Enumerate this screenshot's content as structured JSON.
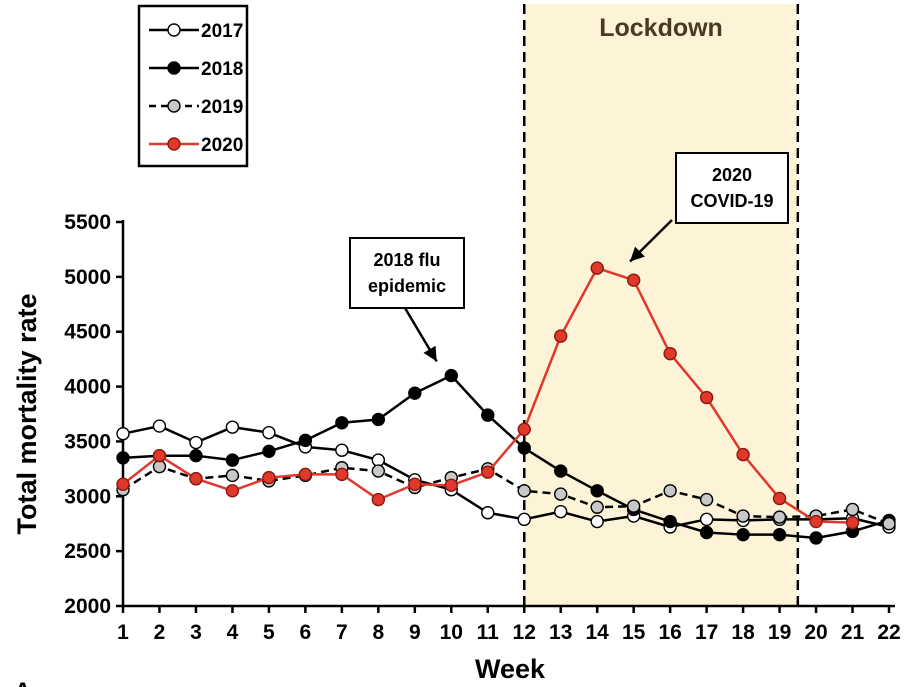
{
  "chart_data": {
    "type": "line",
    "title": "",
    "xlabel": "Week",
    "ylabel": "Total mortality rate",
    "x": [
      1,
      2,
      3,
      4,
      5,
      6,
      7,
      8,
      9,
      10,
      11,
      12,
      13,
      14,
      15,
      16,
      17,
      18,
      19,
      20,
      21,
      22
    ],
    "xlim": [
      1,
      22
    ],
    "ylim": [
      2000,
      5500
    ],
    "yticks": [
      2000,
      2500,
      3000,
      3500,
      4000,
      4500,
      5000,
      5500
    ],
    "grid": false,
    "legend_position": "top-left",
    "series": [
      {
        "name": "2017",
        "color": "#000000",
        "marker_fill": "#ffffff",
        "line_style": "solid",
        "values": [
          3570,
          3640,
          3490,
          3630,
          3580,
          3450,
          3420,
          3330,
          3150,
          3060,
          2850,
          2790,
          2860,
          2770,
          2820,
          2720,
          2790,
          2780,
          2790,
          2790,
          2800,
          2720
        ]
      },
      {
        "name": "2018",
        "color": "#000000",
        "marker_fill": "#000000",
        "line_style": "solid",
        "values": [
          3350,
          3370,
          3370,
          3330,
          3410,
          3510,
          3670,
          3700,
          3940,
          4100,
          3740,
          3440,
          3230,
          3050,
          2880,
          2770,
          2670,
          2650,
          2650,
          2620,
          2680,
          2780
        ]
      },
      {
        "name": "2019",
        "color": "#000000",
        "marker_fill": "#c8c8c8",
        "line_style": "dashed",
        "values": [
          3060,
          3270,
          3160,
          3190,
          3140,
          3190,
          3260,
          3230,
          3080,
          3170,
          3250,
          3050,
          3020,
          2900,
          2910,
          3050,
          2970,
          2820,
          2810,
          2820,
          2880,
          2750
        ]
      },
      {
        "name": "2020",
        "color": "#e0392b",
        "marker_fill": "#e0392b",
        "line_style": "solid",
        "values": [
          3110,
          3370,
          3160,
          3050,
          3170,
          3200,
          3200,
          2970,
          3110,
          3100,
          3220,
          3610,
          4460,
          5080,
          4970,
          4300,
          3900,
          3380,
          2980,
          2770,
          2760,
          null
        ]
      }
    ],
    "lockdown": {
      "label": "Lockdown",
      "start_week": 12,
      "end_week": 19.5,
      "fill": "#fdf3d6"
    },
    "annotations": [
      {
        "lines": [
          "2018 flu",
          "epidemic"
        ],
        "target_week": 9.6,
        "target_value": 4230
      },
      {
        "lines": [
          "2020",
          "COVID-19"
        ],
        "target_week": 14.9,
        "target_value": 5140
      }
    ],
    "panel_label": "A"
  }
}
